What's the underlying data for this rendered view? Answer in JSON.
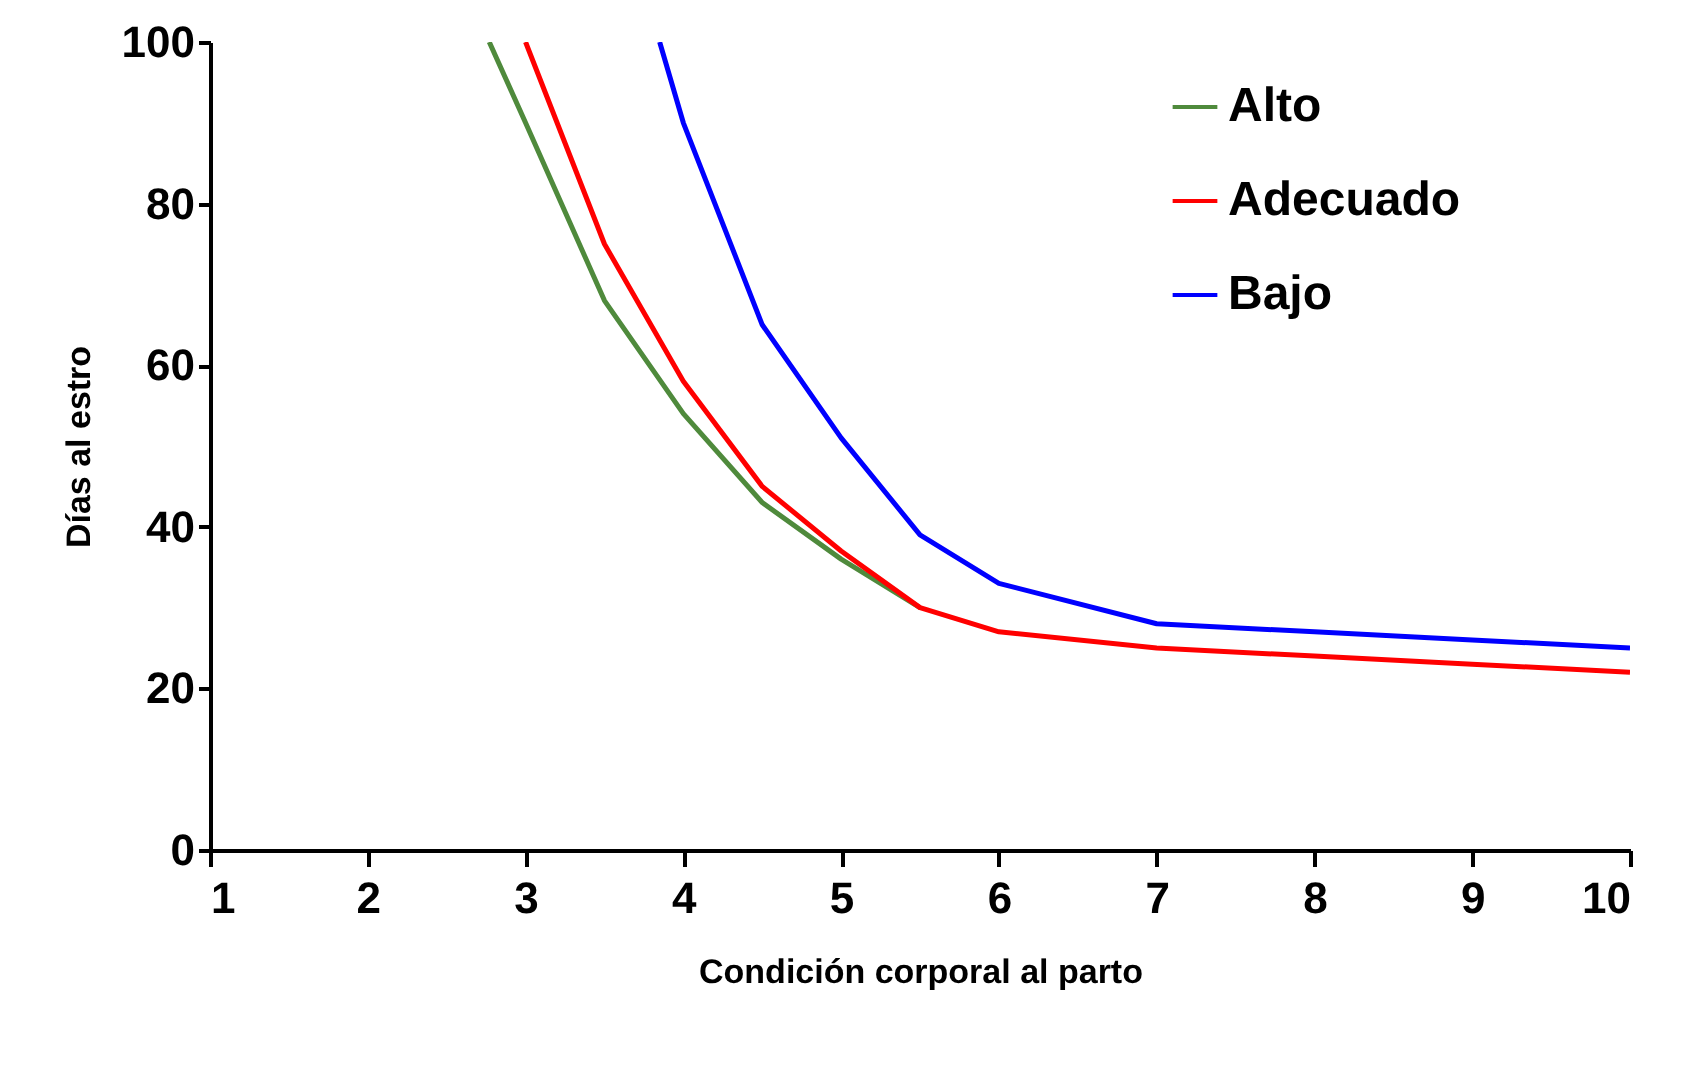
{
  "chart_data": {
    "type": "line",
    "xlabel": "Condición corporal al parto",
    "ylabel": "Días al estro",
    "xlim": [
      1,
      10
    ],
    "xticks": [
      1,
      2,
      3,
      4,
      5,
      6,
      7,
      8,
      9,
      10
    ],
    "ylim": [
      0,
      100
    ],
    "yticks": [
      0,
      20,
      40,
      60,
      80,
      100
    ],
    "grid": false,
    "legend": "top right",
    "marker": "none",
    "line_style": "solid",
    "series": [
      {
        "name": "Alto",
        "color": "#4f8a3c",
        "x": [
          2.77,
          3,
          3.5,
          4,
          4.5,
          5,
          5.5
        ],
        "values": [
          100,
          90,
          68,
          54,
          43,
          36,
          30
        ]
      },
      {
        "name": "Adecuado",
        "color": "#ff0000",
        "x": [
          3,
          3.5,
          4,
          4.5,
          5,
          5.5,
          6,
          7,
          8,
          9,
          10
        ],
        "values": [
          100,
          75,
          58,
          45,
          37,
          30,
          27,
          25,
          24,
          23,
          22
        ]
      },
      {
        "name": "Bajo",
        "color": "#0000ff",
        "x": [
          3.85,
          4,
          4.5,
          5,
          5.5,
          6,
          7,
          8,
          9,
          10
        ],
        "values": [
          100,
          90,
          65,
          51,
          39,
          33,
          28,
          27,
          26,
          25
        ]
      }
    ]
  }
}
